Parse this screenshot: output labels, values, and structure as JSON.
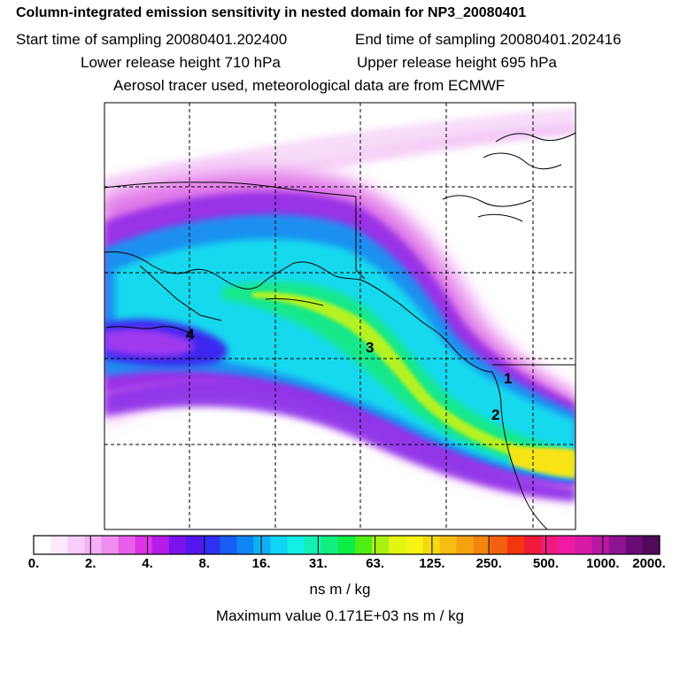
{
  "header": {
    "title": "Column-integrated emission sensitivity in nested domain for NP3_20080401",
    "start_label": "Start time of sampling 20080401.202400",
    "end_label": "End time of sampling 20080401.202416",
    "lower_release": "Lower release height  710 hPa",
    "upper_release": "Upper release height  695 hPa",
    "aerosol_line": "Aerosol tracer used, meteorological data are from ECMWF"
  },
  "map": {
    "markers": [
      "4",
      "3",
      "1",
      "2"
    ]
  },
  "colorbar": {
    "colors": [
      "#ffffff",
      "#fde9fd",
      "#f8cdf8",
      "#f3b1f3",
      "#ef8fef",
      "#e75fe9",
      "#dc34e6",
      "#b41ce8",
      "#7b14ec",
      "#5516ef",
      "#2f2ff2",
      "#175cf3",
      "#0c86f3",
      "#0fb0f3",
      "#0fd4f3",
      "#12efe4",
      "#13f0b6",
      "#10ee7e",
      "#0ced46",
      "#50ee12",
      "#a8f212",
      "#e3f512",
      "#f7f312",
      "#f5da10",
      "#f6bd10",
      "#f4a20e",
      "#f4840e",
      "#f3600e",
      "#f2350d",
      "#ef1a3a",
      "#ef1a7e",
      "#ee1aa2",
      "#d81aa6",
      "#b818a3",
      "#8e1491",
      "#6a0b76",
      "#4f0a5a"
    ],
    "labels": [
      "0.",
      "2.",
      "4.",
      "8.",
      "16.",
      "31.",
      "63.",
      "125.",
      "250.",
      "500.",
      "1000.",
      "2000."
    ]
  },
  "units": "ns m / kg",
  "max_value_text": "Maximum value  0.171E+03 ns m / kg"
}
